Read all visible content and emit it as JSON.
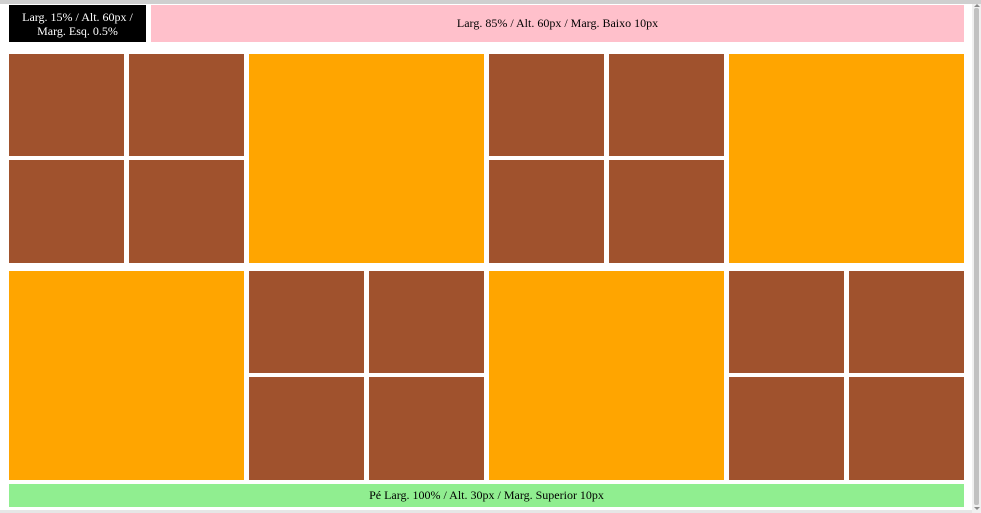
{
  "header": {
    "left_box_text": "Larg. 15% / Alt. 60px / Marg. Esq. 0.5%",
    "right_box_text": "Larg. 85% / Alt. 60px / Marg. Baixo 10px"
  },
  "footer": {
    "text": "Pé Larg. 100% / Alt. 30px / Marg. Superior 10px"
  },
  "colors": {
    "black": "#000000",
    "pink": "#ffc0cb",
    "green": "#90ee90",
    "brown": "#a0522d",
    "orange": "#ffa500"
  }
}
